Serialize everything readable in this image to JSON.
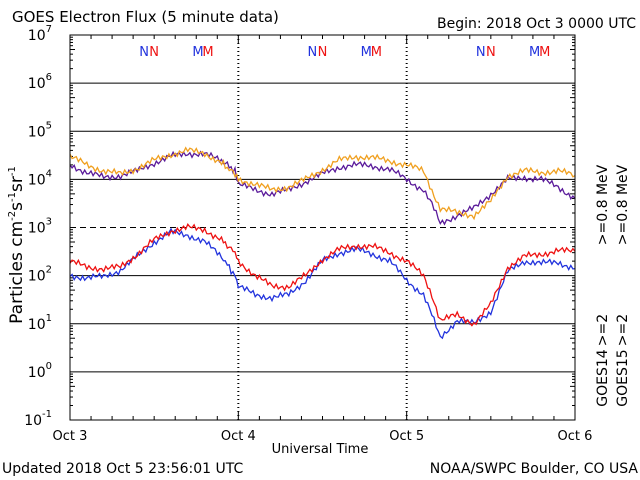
{
  "header": {
    "title": "GOES Electron Flux (5 minute data)",
    "begin": "Begin: 2018 Oct 3 0000 UTC"
  },
  "footer": {
    "updated": "Updated 2018 Oct  5 23:56:01 UTC",
    "source": "NOAA/SWPC Boulder, CO USA"
  },
  "axes": {
    "xlabel": "Universal Time",
    "ylabel_parts": [
      "Particles cm",
      "-2",
      "s",
      "-1",
      "sr",
      "-1"
    ]
  },
  "legend": {
    "satellites": [
      {
        "name": "GOES14",
        "series": [
          {
            "label": ">=2",
            "color": "#2233dd"
          },
          {
            "label": ">=0.8  MeV",
            "color": "#5a1a9a"
          }
        ]
      },
      {
        "name": "GOES15",
        "series": [
          {
            "label": ">=2",
            "color": "#ee1111"
          },
          {
            "label": ">=0.8  MeV",
            "color": "#f0a020"
          }
        ]
      }
    ]
  },
  "markers": [
    {
      "label": "M",
      "color": "#2233dd",
      "x": 0.76
    },
    {
      "label": "M",
      "color": "#ee1111",
      "x": 0.82
    },
    {
      "label": "N",
      "color": "#2233dd",
      "x": 1.44
    },
    {
      "label": "N",
      "color": "#ee1111",
      "x": 1.5
    },
    {
      "label": "M",
      "color": "#2233dd",
      "x": 1.76
    },
    {
      "label": "M",
      "color": "#ee1111",
      "x": 1.82
    },
    {
      "label": "N",
      "color": "#2233dd",
      "x": 2.44
    },
    {
      "label": "N",
      "color": "#ee1111",
      "x": 2.5
    },
    {
      "label": "M",
      "color": "#2233dd",
      "x": 2.76
    },
    {
      "label": "M",
      "color": "#ee1111",
      "x": 2.82
    },
    {
      "label": "N",
      "color": "#2233dd",
      "x": 0.44
    },
    {
      "label": "N",
      "color": "#ee1111",
      "x": 0.5
    }
  ],
  "chart_data": {
    "type": "line",
    "title": "GOES Electron Flux (5 minute data)",
    "xlabel": "Universal Time",
    "ylabel": "Particles cm-2 s-1 sr-1",
    "x_unit": "days since 2018 Oct 3 0000 UTC",
    "xlim": [
      0,
      3
    ],
    "xticks": [
      {
        "x": 0,
        "label": "Oct 3"
      },
      {
        "x": 1,
        "label": "Oct 4"
      },
      {
        "x": 2,
        "label": "Oct 5"
      },
      {
        "x": 3,
        "label": "Oct 6"
      }
    ],
    "ylim_exp": [
      -1,
      7
    ],
    "yscale": "log",
    "yticks": [
      {
        "base": "10",
        "exp": "-1"
      },
      {
        "base": "10",
        "exp": "0"
      },
      {
        "base": "10",
        "exp": "1"
      },
      {
        "base": "10",
        "exp": "2"
      },
      {
        "base": "10",
        "exp": "3"
      },
      {
        "base": "10",
        "exp": "4"
      },
      {
        "base": "10",
        "exp": "5"
      },
      {
        "base": "10",
        "exp": "6"
      },
      {
        "base": "10",
        "exp": "7"
      }
    ],
    "threshold": 1000,
    "series": [
      {
        "name": "GOES14 >=0.8 MeV",
        "color": "#5a1a9a",
        "x": [
          0,
          0.1,
          0.2,
          0.3,
          0.4,
          0.5,
          0.6,
          0.7,
          0.8,
          0.9,
          0.98,
          1.0,
          1.1,
          1.2,
          1.3,
          1.4,
          1.5,
          1.6,
          1.7,
          1.8,
          1.9,
          2.0,
          2.1,
          2.15,
          2.2,
          2.3,
          2.4,
          2.5,
          2.6,
          2.7,
          2.8,
          2.9,
          3.0
        ],
        "y": [
          20000,
          14000,
          11000,
          12000,
          15000,
          22000,
          30000,
          35000,
          33000,
          25000,
          15000,
          8000,
          6000,
          5000,
          6000,
          9000,
          13000,
          18000,
          20000,
          19000,
          16000,
          10000,
          6000,
          3000,
          1200,
          1800,
          2500,
          5000,
          10000,
          11000,
          10000,
          7000,
          4000
        ]
      },
      {
        "name": "GOES15 >=0.8 MeV",
        "color": "#f0a020",
        "x": [
          0,
          0.1,
          0.2,
          0.3,
          0.4,
          0.5,
          0.6,
          0.7,
          0.8,
          0.9,
          0.98,
          1.0,
          1.1,
          1.2,
          1.3,
          1.4,
          1.5,
          1.6,
          1.7,
          1.8,
          1.9,
          2.0,
          2.1,
          2.15,
          2.2,
          2.3,
          2.4,
          2.5,
          2.6,
          2.7,
          2.8,
          2.9,
          3.0
        ],
        "y": [
          30000,
          20000,
          15000,
          13000,
          17000,
          25000,
          33000,
          40000,
          35000,
          22000,
          13000,
          10000,
          8000,
          6000,
          7000,
          10000,
          16000,
          25000,
          30000,
          28000,
          24000,
          20000,
          15000,
          6000,
          2500,
          2000,
          1800,
          3500,
          12000,
          15000,
          14000,
          15000,
          12000
        ]
      },
      {
        "name": "GOES14 >=2 MeV",
        "color": "#2233dd",
        "x": [
          0,
          0.1,
          0.2,
          0.3,
          0.4,
          0.5,
          0.6,
          0.7,
          0.8,
          0.9,
          0.98,
          1.0,
          1.1,
          1.2,
          1.3,
          1.4,
          1.5,
          1.6,
          1.7,
          1.8,
          1.9,
          2.0,
          2.1,
          2.15,
          2.2,
          2.3,
          2.4,
          2.5,
          2.6,
          2.7,
          2.8,
          2.9,
          3.0
        ],
        "y": [
          100,
          90,
          95,
          130,
          250,
          500,
          800,
          700,
          500,
          250,
          100,
          60,
          40,
          35,
          40,
          80,
          200,
          300,
          350,
          280,
          200,
          80,
          40,
          15,
          5,
          12,
          10,
          18,
          120,
          200,
          180,
          190,
          140
        ]
      },
      {
        "name": "GOES15 >=2 MeV",
        "color": "#ee1111",
        "x": [
          0,
          0.1,
          0.2,
          0.3,
          0.4,
          0.5,
          0.6,
          0.7,
          0.8,
          0.9,
          0.98,
          1.0,
          1.1,
          1.2,
          1.3,
          1.4,
          1.5,
          1.6,
          1.7,
          1.8,
          1.9,
          2.0,
          2.1,
          2.15,
          2.2,
          2.3,
          2.4,
          2.5,
          2.6,
          2.7,
          2.8,
          2.9,
          3.0
        ],
        "y": [
          200,
          150,
          140,
          150,
          280,
          550,
          850,
          1000,
          900,
          550,
          300,
          200,
          100,
          60,
          60,
          100,
          220,
          350,
          420,
          400,
          300,
          200,
          100,
          40,
          12,
          15,
          10,
          25,
          150,
          250,
          280,
          330,
          320
        ]
      }
    ]
  }
}
